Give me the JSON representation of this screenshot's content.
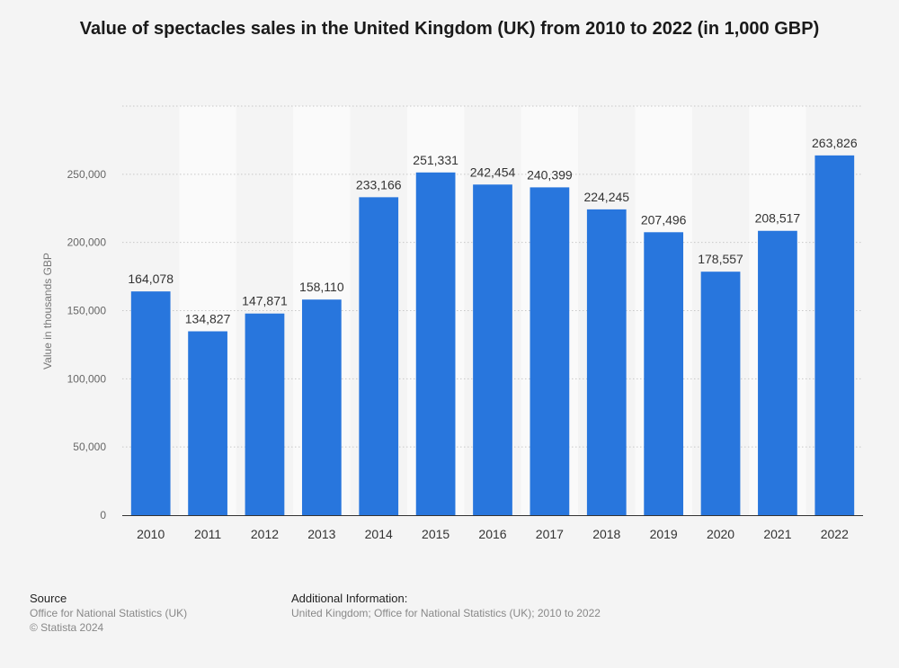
{
  "chart_data": {
    "type": "bar",
    "title": "Value of spectacles sales in the United Kingdom (UK) from 2010 to 2022 (in 1,000 GBP)",
    "ylabel": "Value in thousands GBP",
    "xlabel": "",
    "categories": [
      "2010",
      "2011",
      "2012",
      "2013",
      "2014",
      "2015",
      "2016",
      "2017",
      "2018",
      "2019",
      "2020",
      "2021",
      "2022"
    ],
    "values": [
      164078,
      134827,
      147871,
      158110,
      233166,
      251331,
      242454,
      240399,
      224245,
      207496,
      178557,
      208517,
      263826
    ],
    "value_labels": [
      "164,078",
      "134,827",
      "147,871",
      "158,110",
      "233,166",
      "251,331",
      "242,454",
      "240,399",
      "224,245",
      "207,496",
      "178,557",
      "208,517",
      "263,826"
    ],
    "yticks": [
      0,
      50000,
      100000,
      150000,
      200000,
      250000
    ],
    "ytick_labels": [
      "0",
      "50,000",
      "100,000",
      "150,000",
      "200,000",
      "250,000"
    ],
    "ylim": [
      0,
      300000
    ],
    "grid": true,
    "bar_color": "#2876dd"
  },
  "footer": {
    "source_heading": "Source",
    "source_line1": "Office for National Statistics (UK)",
    "source_line2": "© Statista 2024",
    "info_heading": "Additional Information:",
    "info_line1": "United Kingdom; Office for National Statistics (UK); 2010 to 2022"
  }
}
